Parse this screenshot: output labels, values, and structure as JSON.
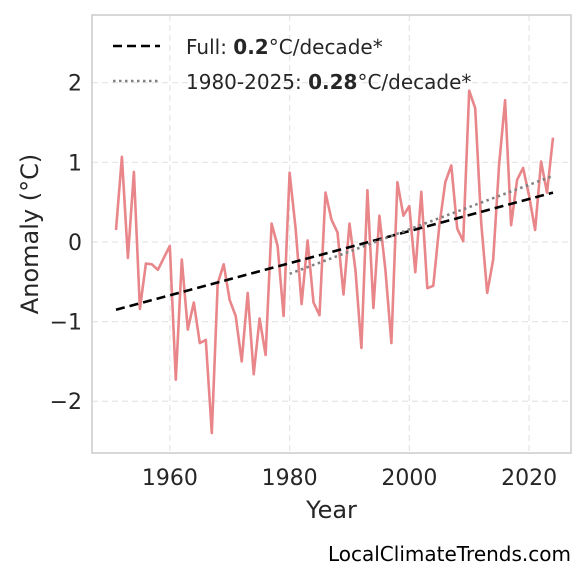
{
  "chart_data": {
    "type": "line",
    "xlabel": "Year",
    "ylabel": "Anomaly (°C)",
    "xlim": [
      1947,
      2027
    ],
    "ylim": [
      -2.65,
      2.85
    ],
    "x_ticks": [
      1960,
      1980,
      2000,
      2020
    ],
    "x_tick_labels": [
      "1960",
      "1980",
      "2000",
      "2020"
    ],
    "y_ticks": [
      -2,
      -1,
      0,
      1,
      2
    ],
    "y_tick_labels": [
      "−2",
      "−1",
      "0",
      "1",
      "2"
    ],
    "grid": true,
    "legend_position": "top-left",
    "series": [
      {
        "style": "solid",
        "color": "#e8868a",
        "x": [
          1951,
          1952,
          1953,
          1954,
          1955,
          1956,
          1957,
          1958,
          1959,
          1960,
          1961,
          1962,
          1963,
          1964,
          1965,
          1966,
          1967,
          1968,
          1969,
          1970,
          1971,
          1972,
          1973,
          1974,
          1975,
          1976,
          1977,
          1978,
          1979,
          1980,
          1981,
          1982,
          1983,
          1984,
          1985,
          1986,
          1987,
          1988,
          1989,
          1990,
          1991,
          1992,
          1993,
          1994,
          1995,
          1996,
          1997,
          1998,
          1999,
          2000,
          2001,
          2002,
          2003,
          2004,
          2005,
          2006,
          2007,
          2008,
          2009,
          2010,
          2011,
          2012,
          2013,
          2014,
          2015,
          2016,
          2017,
          2018,
          2019,
          2020,
          2021,
          2022,
          2023,
          2024
        ],
        "y": [
          0.15,
          1.07,
          -0.2,
          0.88,
          -0.84,
          -0.27,
          -0.28,
          -0.35,
          -0.2,
          -0.05,
          -1.73,
          -0.22,
          -1.1,
          -0.76,
          -1.27,
          -1.23,
          -2.4,
          -0.52,
          -0.28,
          -0.73,
          -0.93,
          -1.5,
          -0.64,
          -1.66,
          -0.96,
          -1.42,
          0.23,
          -0.05,
          -0.93,
          0.87,
          0.17,
          -0.78,
          0.02,
          -0.76,
          -0.92,
          0.62,
          0.28,
          0.12,
          -0.66,
          0.23,
          -0.36,
          -1.33,
          0.65,
          -0.83,
          0.33,
          -0.35,
          -1.27,
          0.75,
          0.33,
          0.45,
          -0.38,
          0.63,
          -0.58,
          -0.55,
          0.2,
          0.75,
          0.96,
          0.17,
          0.01,
          1.9,
          1.68,
          0.24,
          -0.64,
          -0.22,
          0.97,
          1.78,
          0.21,
          0.78,
          0.93,
          0.58,
          0.15,
          1.01,
          0.62,
          1.31
        ]
      },
      {
        "name": "Full: 0.2°C/decade*",
        "style": "dashed",
        "color": "#000000",
        "x": [
          1951,
          2024
        ],
        "y": [
          -0.85,
          0.62
        ]
      },
      {
        "name": "1980-2025: 0.28°C/decade*",
        "style": "dotted",
        "color": "#808080",
        "x": [
          1980,
          2024
        ],
        "y": [
          -0.4,
          0.83
        ]
      }
    ]
  },
  "legend": {
    "full": {
      "prefix": "Full: ",
      "value": "0.2",
      "suffix": "°C/decade*"
    },
    "recent": {
      "prefix": "1980-2025: ",
      "value": "0.28",
      "suffix": "°C/decade*"
    }
  },
  "credit": "LocalClimateTrends.com"
}
